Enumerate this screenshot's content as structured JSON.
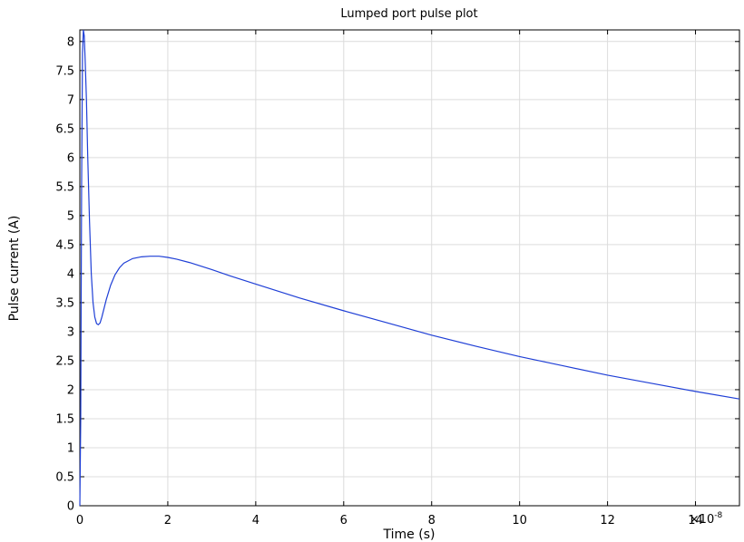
{
  "chart_data": {
    "type": "line",
    "title": "Lumped port pulse plot",
    "xlabel": "Time (s)",
    "ylabel": "Pulse current (A)",
    "x_multiplier_label": "×10",
    "x_multiplier_exponent": "-8",
    "xlim": [
      0,
      15
    ],
    "ylim": [
      0,
      8.2
    ],
    "x_ticks": [
      0,
      2,
      4,
      6,
      8,
      10,
      12,
      14
    ],
    "x_tick_labels": [
      "0",
      "2",
      "4",
      "6",
      "8",
      "10",
      "12",
      "14"
    ],
    "y_ticks": [
      0,
      0.5,
      1,
      1.5,
      2,
      2.5,
      3,
      3.5,
      4,
      4.5,
      5,
      5.5,
      6,
      6.5,
      7,
      7.5,
      8
    ],
    "y_tick_labels": [
      "0",
      "0.5",
      "1",
      "1.5",
      "2",
      "2.5",
      "3",
      "3.5",
      "4",
      "4.5",
      "5",
      "5.5",
      "6",
      "6.5",
      "7",
      "7.5",
      "8"
    ],
    "grid": true,
    "series": [
      {
        "color": "#1f3fd6",
        "x": [
          0,
          0.02,
          0.04,
          0.06,
          0.08,
          0.1,
          0.12,
          0.15,
          0.18,
          0.22,
          0.26,
          0.3,
          0.34,
          0.38,
          0.42,
          0.46,
          0.5,
          0.55,
          0.6,
          0.7,
          0.8,
          0.9,
          1.0,
          1.2,
          1.4,
          1.6,
          1.8,
          2.0,
          2.2,
          2.5,
          3.0,
          3.5,
          4.0,
          5.0,
          6.0,
          7.0,
          8.0,
          9.0,
          10.0,
          11.0,
          12.0,
          13.0,
          14.0,
          15.0
        ],
        "y": [
          0,
          1.5,
          5.5,
          7.8,
          8.2,
          8.1,
          7.7,
          7.0,
          6.0,
          4.9,
          4.0,
          3.5,
          3.25,
          3.14,
          3.12,
          3.15,
          3.25,
          3.4,
          3.55,
          3.8,
          3.98,
          4.1,
          4.18,
          4.26,
          4.29,
          4.3,
          4.3,
          4.28,
          4.25,
          4.19,
          4.07,
          3.94,
          3.82,
          3.58,
          3.36,
          3.15,
          2.94,
          2.75,
          2.57,
          2.41,
          2.25,
          2.11,
          1.97,
          1.84
        ]
      }
    ]
  }
}
